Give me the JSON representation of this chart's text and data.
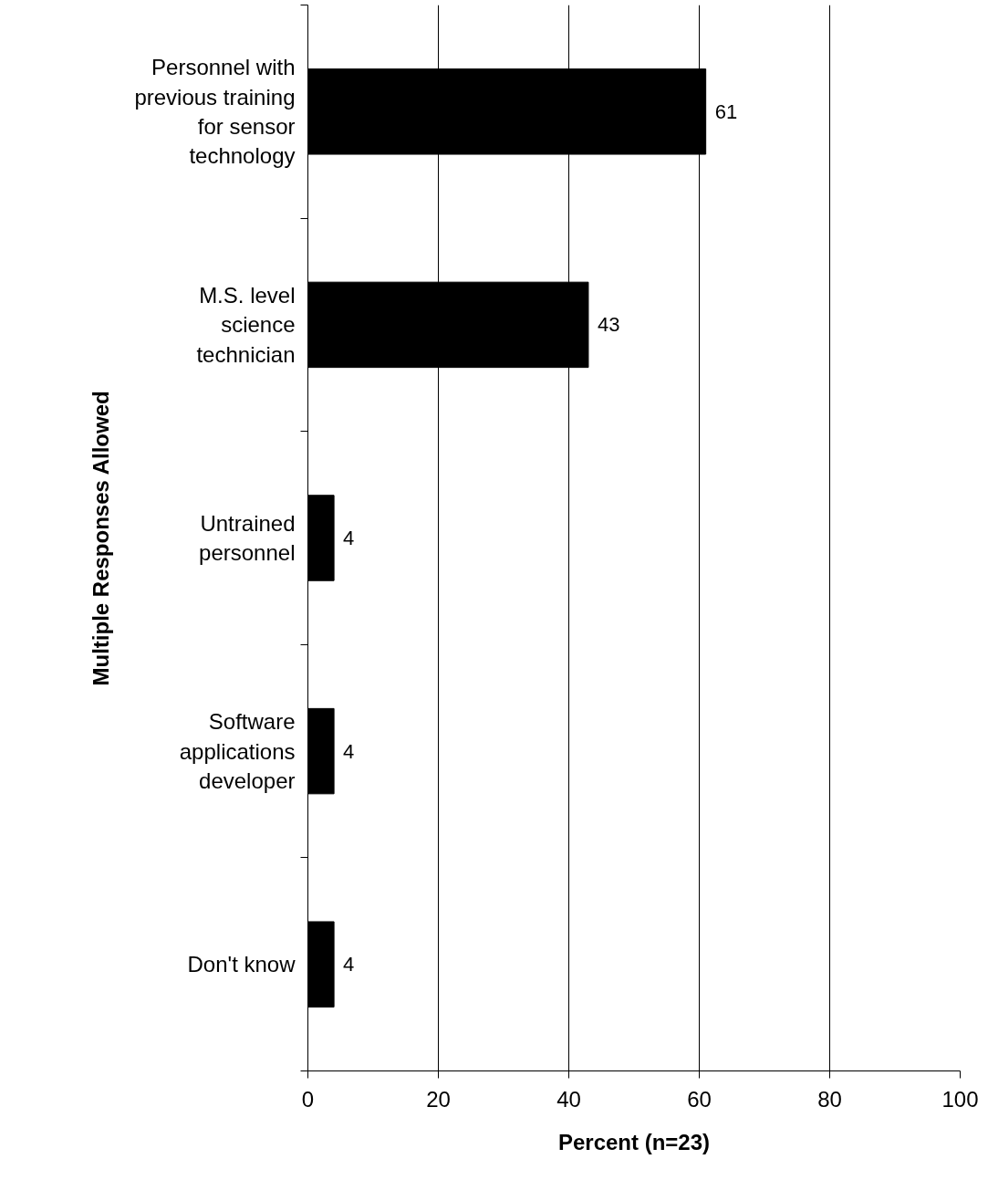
{
  "chart_data": {
    "type": "bar",
    "orientation": "horizontal",
    "categories": [
      "Personnel with\nprevious training\nfor sensor\ntechnology",
      "M.S. level\nscience\ntechnician",
      "Untrained\npersonnel",
      "Software\napplications\ndeveloper",
      "Don't know"
    ],
    "values": [
      61,
      43,
      4,
      4,
      4
    ],
    "color": "#000000",
    "xlim": [
      0,
      100
    ],
    "xticks": [
      0,
      20,
      40,
      60,
      80,
      100
    ],
    "xlabel": "Percent (n=23)",
    "ylabel": "Multiple Responses Allowed",
    "grid": "x",
    "data_labels": true
  }
}
